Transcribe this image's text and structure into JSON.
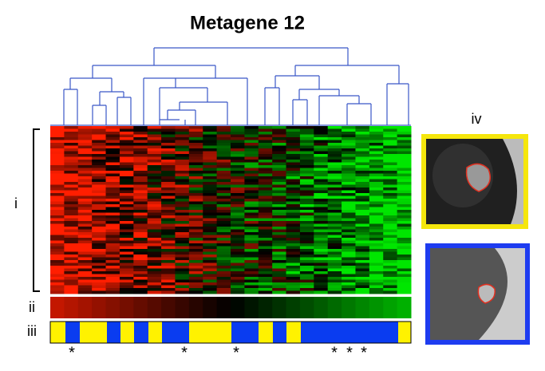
{
  "title": "Metagene 12",
  "labels": {
    "i": "i",
    "ii": "ii",
    "iii": "iii",
    "iv": "iv"
  },
  "markers": [
    "*",
    "*",
    "*",
    "*",
    "*",
    "*"
  ]
}
